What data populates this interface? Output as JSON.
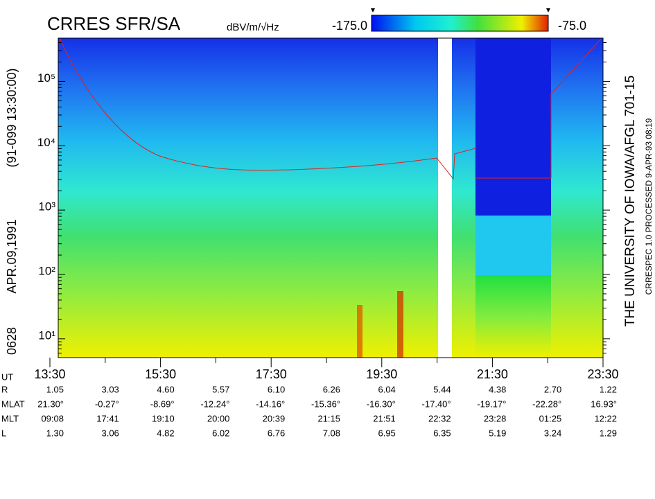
{
  "chart_data": {
    "type": "spectrogram",
    "title": "CRRES SFR/SA",
    "colorbar_unit": "dBV/m/√Hz",
    "clim": [
      {
        "value": -175,
        "label": "-175.0"
      },
      {
        "value": -75,
        "label": "-75.0"
      }
    ],
    "left_labels": [
      "0628",
      "APR.09,1991",
      "(91-099 13:30:00)"
    ],
    "right_labels": [
      "THE UNIVERSITY OF IOWA/AFGL 701-15",
      "CRRESPEC 1.0  PROCESSED  9-APR-93  08:19"
    ],
    "log_y": true,
    "ylim": [
      5.1,
      470000
    ],
    "yticks": [
      {
        "value": 10,
        "label": "10¹"
      },
      {
        "value": 100,
        "label": "10²"
      },
      {
        "value": 1000,
        "label": "10³"
      },
      {
        "value": 10000,
        "label": "10⁴"
      },
      {
        "value": 100000,
        "label": "10⁵"
      }
    ],
    "xlim": [
      13.5,
      23.5
    ],
    "xticks": [
      {
        "value": 13.5,
        "label": "13:30"
      },
      {
        "value": 15.5,
        "label": "15:30"
      },
      {
        "value": 17.5,
        "label": "17:30"
      },
      {
        "value": 19.5,
        "label": "19:30"
      },
      {
        "value": 21.5,
        "label": "21:30"
      },
      {
        "value": 23.5,
        "label": "23:30"
      }
    ],
    "xminorticks": [
      14.5,
      16.5,
      18.5,
      20.5,
      22.5
    ],
    "x_label": "UT",
    "ephemeris": [
      {
        "label": "R",
        "values": [
          "1.05",
          "3.03",
          "4.60",
          "5.57",
          "6.10",
          "6.26",
          "6.04",
          "5.44",
          "4.38",
          "2.70",
          "1.22"
        ]
      },
      {
        "label": "MLAT",
        "values": [
          "21.30°",
          "-0.27°",
          "-8.69°",
          "-12.24°",
          "-14.16°",
          "-15.36°",
          "-16.30°",
          "-17.40°",
          "-19.17°",
          "-22.28°",
          "16.93°"
        ]
      },
      {
        "label": "MLT",
        "values": [
          "09:08",
          "17:41",
          "19:10",
          "20:00",
          "20:39",
          "21:15",
          "21:51",
          "22:32",
          "23:28",
          "01:25",
          "12:22"
        ]
      },
      {
        "label": "L",
        "values": [
          "1.30",
          "3.06",
          "4.82",
          "6.02",
          "6.76",
          "7.08",
          "6.95",
          "6.35",
          "5.19",
          "3.24",
          "1.29"
        ]
      }
    ]
  }
}
